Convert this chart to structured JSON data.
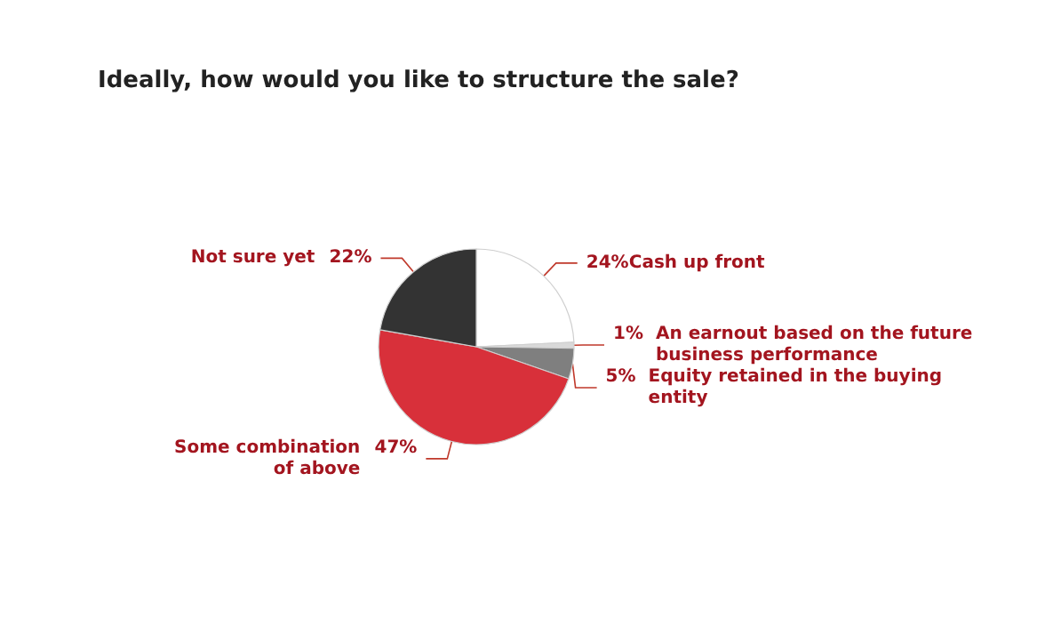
{
  "chart_data": {
    "type": "pie",
    "title": "Ideally, how would you like to structure the sale?",
    "categories": [
      "Cash up front",
      "An earnout based on the future business performance",
      "Equity retained in the buying entity",
      "Some combination of above",
      "Not sure yet"
    ],
    "values": [
      24,
      1,
      5,
      47,
      22
    ],
    "value_labels": [
      "24%",
      "1%",
      "5%",
      "47%",
      "22%"
    ],
    "colors": [
      "#ffffff",
      "#d9d9d9",
      "#7f7f7f",
      "#d8303a",
      "#333333"
    ],
    "data_labels": true,
    "legend": false
  }
}
